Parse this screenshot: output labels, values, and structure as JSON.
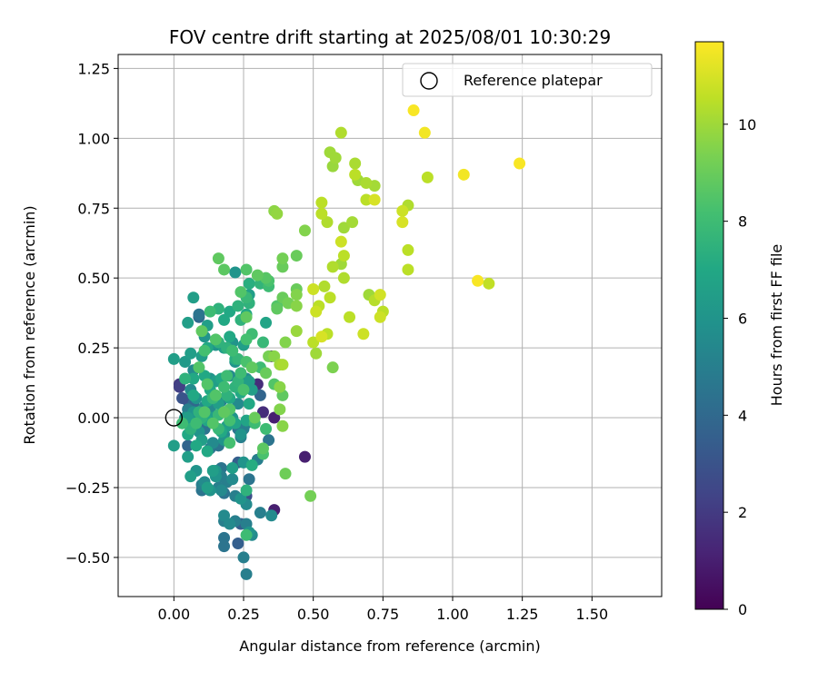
{
  "chart_data": {
    "type": "scatter",
    "title": "FOV centre drift starting at 2025/08/01 10:30:29",
    "xlabel": "Angular distance from reference (arcmin)",
    "ylabel": "Rotation from reference (arcmin)",
    "xlim": [
      -0.2,
      1.75
    ],
    "ylim": [
      -0.64,
      1.3
    ],
    "xticks": [
      0.0,
      0.25,
      0.5,
      0.75,
      1.0,
      1.25,
      1.5
    ],
    "xtick_labels": [
      "0.00",
      "0.25",
      "0.50",
      "0.75",
      "1.00",
      "1.25",
      "1.50"
    ],
    "yticks": [
      -0.5,
      -0.25,
      0.0,
      0.25,
      0.5,
      0.75,
      1.0,
      1.25
    ],
    "ytick_labels": [
      "−0.50",
      "−0.25",
      "0.00",
      "0.25",
      "0.50",
      "0.75",
      "1.00",
      "1.25"
    ],
    "grid": true,
    "legend": {
      "position": "top-right",
      "entries": [
        "Reference platepar"
      ]
    },
    "reference_point": {
      "x": 0.0,
      "y": 0.0,
      "label": "Reference platepar"
    },
    "colorbar": {
      "label": "Hours from first FF file",
      "colormap": "viridis",
      "range": [
        0,
        11.7
      ],
      "ticks": [
        0,
        2,
        4,
        6,
        8,
        10
      ],
      "tick_labels": [
        "0",
        "2",
        "4",
        "6",
        "8",
        "10"
      ]
    },
    "points": [
      [
        0.86,
        1.1,
        11.6
      ],
      [
        0.9,
        1.02,
        11.5
      ],
      [
        1.24,
        0.91,
        11.6
      ],
      [
        1.04,
        0.87,
        11.5
      ],
      [
        1.09,
        0.49,
        11.6
      ],
      [
        1.13,
        0.48,
        10.6
      ],
      [
        0.6,
        1.02,
        10.3
      ],
      [
        0.56,
        0.95,
        10.0
      ],
      [
        0.58,
        0.93,
        10.0
      ],
      [
        0.57,
        0.9,
        9.9
      ],
      [
        0.65,
        0.91,
        10.2
      ],
      [
        0.65,
        0.87,
        10.5
      ],
      [
        0.66,
        0.85,
        10.0
      ],
      [
        0.69,
        0.84,
        10.2
      ],
      [
        0.72,
        0.83,
        10.1
      ],
      [
        0.69,
        0.78,
        10.5
      ],
      [
        0.72,
        0.78,
        11.0
      ],
      [
        0.91,
        0.86,
        10.5
      ],
      [
        0.82,
        0.74,
        10.8
      ],
      [
        0.84,
        0.76,
        10.3
      ],
      [
        0.53,
        0.77,
        10.5
      ],
      [
        0.53,
        0.73,
        10.5
      ],
      [
        0.55,
        0.7,
        10.3
      ],
      [
        0.61,
        0.68,
        10.0
      ],
      [
        0.64,
        0.7,
        10.1
      ],
      [
        0.82,
        0.7,
        11.0
      ],
      [
        0.6,
        0.63,
        10.8
      ],
      [
        0.61,
        0.58,
        10.5
      ],
      [
        0.57,
        0.54,
        10.3
      ],
      [
        0.6,
        0.55,
        10.0
      ],
      [
        0.84,
        0.6,
        10.5
      ],
      [
        0.84,
        0.53,
        10.5
      ],
      [
        0.61,
        0.5,
        10.3
      ],
      [
        0.7,
        0.44,
        10.0
      ],
      [
        0.72,
        0.42,
        10.4
      ],
      [
        0.74,
        0.44,
        10.9
      ],
      [
        0.75,
        0.38,
        10.5
      ],
      [
        0.74,
        0.36,
        10.8
      ],
      [
        0.63,
        0.36,
        10.5
      ],
      [
        0.68,
        0.3,
        10.8
      ],
      [
        0.54,
        0.47,
        10.3
      ],
      [
        0.56,
        0.43,
        10.5
      ],
      [
        0.52,
        0.4,
        10.5
      ],
      [
        0.5,
        0.46,
        10.8
      ],
      [
        0.51,
        0.38,
        10.8
      ],
      [
        0.53,
        0.29,
        11.0
      ],
      [
        0.55,
        0.3,
        10.5
      ],
      [
        0.5,
        0.27,
        10.5
      ],
      [
        0.51,
        0.23,
        10.0
      ],
      [
        0.57,
        0.18,
        9.4
      ],
      [
        0.44,
        0.46,
        9.0
      ],
      [
        0.44,
        0.44,
        9.5
      ],
      [
        0.41,
        0.41,
        9.2
      ],
      [
        0.44,
        0.4,
        9.6
      ],
      [
        0.37,
        0.4,
        8.5
      ],
      [
        0.39,
        0.43,
        9.0
      ],
      [
        0.36,
        0.74,
        9.7
      ],
      [
        0.37,
        0.73,
        9.8
      ],
      [
        0.47,
        0.67,
        9.5
      ],
      [
        0.44,
        0.58,
        9.0
      ],
      [
        0.39,
        0.57,
        9.2
      ],
      [
        0.39,
        0.54,
        9.0
      ],
      [
        0.3,
        0.51,
        8.8
      ],
      [
        0.33,
        0.5,
        8.6
      ],
      [
        0.31,
        0.48,
        7.6
      ],
      [
        0.34,
        0.47,
        8.0
      ],
      [
        0.34,
        0.49,
        8.3
      ],
      [
        0.37,
        0.39,
        8.8
      ],
      [
        0.4,
        0.27,
        9.5
      ],
      [
        0.38,
        0.19,
        10.0
      ],
      [
        0.39,
        0.19,
        10.2
      ],
      [
        0.44,
        0.31,
        9.9
      ],
      [
        0.36,
        0.22,
        9.6
      ],
      [
        0.36,
        0.12,
        8.5
      ],
      [
        0.38,
        0.11,
        9.6
      ],
      [
        0.39,
        0.08,
        8.8
      ],
      [
        0.38,
        0.03,
        9.5
      ],
      [
        0.39,
        -0.03,
        9.6
      ],
      [
        0.4,
        -0.2,
        9.1
      ],
      [
        0.49,
        -0.28,
        9.2
      ],
      [
        0.36,
        0.0,
        1.0
      ],
      [
        0.47,
        -0.14,
        1.0
      ],
      [
        0.36,
        -0.33,
        1.0
      ],
      [
        0.34,
        0.22,
        9.3
      ],
      [
        0.35,
        0.22,
        1.0
      ],
      [
        0.32,
        0.02,
        1.5
      ],
      [
        0.29,
        0.0,
        9.0
      ],
      [
        0.33,
        -0.04,
        8.0
      ],
      [
        0.32,
        -0.11,
        8.7
      ],
      [
        0.32,
        -0.13,
        8.3
      ],
      [
        0.3,
        -0.15,
        5.0
      ],
      [
        0.28,
        -0.17,
        7.2
      ],
      [
        0.25,
        -0.16,
        6.0
      ],
      [
        0.24,
        -0.06,
        6.0
      ],
      [
        0.25,
        -0.04,
        5.0
      ],
      [
        0.26,
        -0.02,
        4.7
      ],
      [
        0.26,
        -0.01,
        6.8
      ],
      [
        0.27,
        0.05,
        7.0
      ],
      [
        0.31,
        0.08,
        3.8
      ],
      [
        0.3,
        0.12,
        1.5
      ],
      [
        0.31,
        0.18,
        8.0
      ],
      [
        0.33,
        0.16,
        9.0
      ],
      [
        0.32,
        0.27,
        7.8
      ],
      [
        0.33,
        0.34,
        6.8
      ],
      [
        0.25,
        0.26,
        6.5
      ],
      [
        0.28,
        0.3,
        8.0
      ],
      [
        0.26,
        0.28,
        8.2
      ],
      [
        0.24,
        0.35,
        7.5
      ],
      [
        0.26,
        0.37,
        7.0
      ],
      [
        0.26,
        0.36,
        8.8
      ],
      [
        0.26,
        0.43,
        7.8
      ],
      [
        0.27,
        0.41,
        7.5
      ],
      [
        0.27,
        0.44,
        6.5
      ],
      [
        0.27,
        0.48,
        7.3
      ],
      [
        0.26,
        0.53,
        8.5
      ],
      [
        0.22,
        0.52,
        6.0
      ],
      [
        0.18,
        0.53,
        8.7
      ],
      [
        0.16,
        0.57,
        8.8
      ],
      [
        0.24,
        0.45,
        8.5
      ],
      [
        0.2,
        0.38,
        7.0
      ],
      [
        0.23,
        0.4,
        7.5
      ],
      [
        0.16,
        0.39,
        7.5
      ],
      [
        0.13,
        0.38,
        8.0
      ],
      [
        0.18,
        0.35,
        7.0
      ],
      [
        0.09,
        0.37,
        4.5
      ],
      [
        0.07,
        0.43,
        6.5
      ],
      [
        0.05,
        0.34,
        6.5
      ],
      [
        0.1,
        0.31,
        8.8
      ],
      [
        0.11,
        0.29,
        6.0
      ],
      [
        0.12,
        0.25,
        7.0
      ],
      [
        0.11,
        0.24,
        8.2
      ],
      [
        0.1,
        0.22,
        6.5
      ],
      [
        0.06,
        0.23,
        6.5
      ],
      [
        0.04,
        0.2,
        6.3
      ],
      [
        0.0,
        0.21,
        6.5
      ],
      [
        0.15,
        0.28,
        8.5
      ],
      [
        0.16,
        0.27,
        7.5
      ],
      [
        0.18,
        0.25,
        6.5
      ],
      [
        0.19,
        0.25,
        7.5
      ],
      [
        0.2,
        0.29,
        7.0
      ],
      [
        0.21,
        0.27,
        6.0
      ],
      [
        0.21,
        0.24,
        8.0
      ],
      [
        0.22,
        0.21,
        7.3
      ],
      [
        0.22,
        0.2,
        6.0
      ],
      [
        0.23,
        0.21,
        7.7
      ],
      [
        0.24,
        0.16,
        8.0
      ],
      [
        0.26,
        0.2,
        8.3
      ],
      [
        0.28,
        0.18,
        8.8
      ],
      [
        0.23,
        0.13,
        7.6
      ],
      [
        0.19,
        0.15,
        8.0
      ],
      [
        0.17,
        0.14,
        7.0
      ],
      [
        0.15,
        0.13,
        6.5
      ],
      [
        0.13,
        0.14,
        6.0
      ],
      [
        0.13,
        0.1,
        7.0
      ],
      [
        0.12,
        0.12,
        8.5
      ],
      [
        0.11,
        0.15,
        7.0
      ],
      [
        0.09,
        0.18,
        8.5
      ],
      [
        0.07,
        0.17,
        5.5
      ],
      [
        0.07,
        0.14,
        7.0
      ],
      [
        0.04,
        0.14,
        7.5
      ],
      [
        0.02,
        0.12,
        2.0
      ],
      [
        0.05,
        0.06,
        3.0
      ],
      [
        0.05,
        0.03,
        5.0
      ],
      [
        0.07,
        0.05,
        4.0
      ],
      [
        0.08,
        0.07,
        6.0
      ],
      [
        0.09,
        0.02,
        7.5
      ],
      [
        0.11,
        0.04,
        5.5
      ],
      [
        0.12,
        0.06,
        7.0
      ],
      [
        0.14,
        0.07,
        7.8
      ],
      [
        0.15,
        0.08,
        8.5
      ],
      [
        0.16,
        0.05,
        6.5
      ],
      [
        0.17,
        0.06,
        5.0
      ],
      [
        0.19,
        0.08,
        7.5
      ],
      [
        0.18,
        0.11,
        8.0
      ],
      [
        0.2,
        0.07,
        7.0
      ],
      [
        0.2,
        0.03,
        8.5
      ],
      [
        0.21,
        0.0,
        6.0
      ],
      [
        0.23,
        0.05,
        5.5
      ],
      [
        0.24,
        0.09,
        7.0
      ],
      [
        0.25,
        0.1,
        8.3
      ],
      [
        0.26,
        0.14,
        5.5
      ],
      [
        0.27,
        0.13,
        6.5
      ],
      [
        0.18,
        0.02,
        8.8
      ],
      [
        0.16,
        0.01,
        7.8
      ],
      [
        0.14,
        0.0,
        6.5
      ],
      [
        0.13,
        -0.01,
        5.0
      ],
      [
        0.12,
        -0.01,
        7.0
      ],
      [
        0.1,
        0.0,
        7.5
      ],
      [
        0.07,
        0.02,
        6.0
      ],
      [
        0.06,
        -0.01,
        5.5
      ],
      [
        0.05,
        0.0,
        6.5
      ],
      [
        0.04,
        -0.01,
        5.8
      ],
      [
        0.03,
        -0.02,
        8.0
      ],
      [
        0.06,
        -0.04,
        7.5
      ],
      [
        0.09,
        -0.05,
        6.0
      ],
      [
        0.11,
        -0.04,
        4.5
      ],
      [
        0.14,
        -0.02,
        8.5
      ],
      [
        0.16,
        -0.04,
        7.8
      ],
      [
        0.17,
        -0.05,
        7.0
      ],
      [
        0.18,
        -0.06,
        5.5
      ],
      [
        0.19,
        -0.03,
        6.5
      ],
      [
        0.2,
        -0.01,
        8.2
      ],
      [
        0.22,
        -0.02,
        6.8
      ],
      [
        0.23,
        -0.04,
        4.5
      ],
      [
        0.24,
        -0.07,
        5.0
      ],
      [
        0.2,
        -0.09,
        8.2
      ],
      [
        0.18,
        -0.08,
        6.0
      ],
      [
        0.16,
        -0.1,
        4.5
      ],
      [
        0.14,
        -0.09,
        5.5
      ],
      [
        0.13,
        -0.11,
        4.5
      ],
      [
        0.12,
        -0.12,
        7.0
      ],
      [
        0.08,
        -0.1,
        7.0
      ],
      [
        0.05,
        -0.1,
        3.8
      ],
      [
        0.0,
        -0.1,
        6.5
      ],
      [
        0.05,
        -0.14,
        6.5
      ],
      [
        0.06,
        -0.21,
        6.5
      ],
      [
        0.08,
        -0.19,
        6.0
      ],
      [
        0.1,
        -0.24,
        5.0
      ],
      [
        0.11,
        -0.23,
        5.5
      ],
      [
        0.1,
        -0.26,
        4.5
      ],
      [
        0.13,
        -0.26,
        6.0
      ],
      [
        0.12,
        -0.25,
        6.5
      ],
      [
        0.14,
        -0.19,
        6.5
      ],
      [
        0.15,
        -0.19,
        6.0
      ],
      [
        0.17,
        -0.21,
        5.0
      ],
      [
        0.17,
        -0.18,
        4.5
      ],
      [
        0.19,
        -0.23,
        5.0
      ],
      [
        0.21,
        -0.22,
        5.5
      ],
      [
        0.21,
        -0.18,
        6.5
      ],
      [
        0.16,
        -0.25,
        5.0
      ],
      [
        0.17,
        -0.26,
        5.5
      ],
      [
        0.18,
        -0.27,
        4.5
      ],
      [
        0.22,
        -0.28,
        5.0
      ],
      [
        0.24,
        -0.29,
        6.0
      ],
      [
        0.26,
        -0.28,
        2.8
      ],
      [
        0.26,
        -0.31,
        5.5
      ],
      [
        0.26,
        -0.26,
        7.5
      ],
      [
        0.23,
        -0.16,
        3.5
      ],
      [
        0.25,
        -0.16,
        6.0
      ],
      [
        0.18,
        -0.35,
        5.5
      ],
      [
        0.18,
        -0.37,
        5.0
      ],
      [
        0.2,
        -0.38,
        5.5
      ],
      [
        0.22,
        -0.37,
        5.0
      ],
      [
        0.24,
        -0.38,
        3.5
      ],
      [
        0.26,
        -0.38,
        5.0
      ],
      [
        0.27,
        -0.41,
        6.0
      ],
      [
        0.28,
        -0.42,
        5.5
      ],
      [
        0.26,
        -0.42,
        8.0
      ],
      [
        0.18,
        -0.43,
        4.5
      ],
      [
        0.18,
        -0.46,
        4.5
      ],
      [
        0.23,
        -0.45,
        3.5
      ],
      [
        0.25,
        -0.5,
        5.0
      ],
      [
        0.26,
        -0.56,
        5.0
      ],
      [
        0.31,
        -0.34,
        5.0
      ],
      [
        0.35,
        -0.35,
        5.5
      ],
      [
        0.34,
        -0.08,
        4.5
      ],
      [
        0.02,
        0.11,
        2.2
      ],
      [
        0.09,
        0.36,
        4.0
      ],
      [
        0.15,
        0.26,
        6.0
      ],
      [
        0.12,
        0.33,
        6.5
      ],
      [
        0.28,
        0.1,
        6.5
      ],
      [
        0.29,
        -0.02,
        8.0
      ],
      [
        0.2,
        0.15,
        5.5
      ],
      [
        0.22,
        0.11,
        7.5
      ],
      [
        0.07,
        0.08,
        7.0
      ],
      [
        0.03,
        0.07,
        3.0
      ],
      [
        0.06,
        0.1,
        5.5
      ],
      [
        0.04,
        0.0,
        6.0
      ],
      [
        0.05,
        -0.06,
        7.0
      ],
      [
        0.1,
        -0.08,
        6.5
      ],
      [
        0.08,
        -0.02,
        8.0
      ],
      [
        0.11,
        0.02,
        8.5
      ],
      [
        0.13,
        0.03,
        5.5
      ],
      [
        0.27,
        -0.22,
        4.5
      ],
      [
        0.15,
        -0.21,
        6.0
      ]
    ]
  }
}
